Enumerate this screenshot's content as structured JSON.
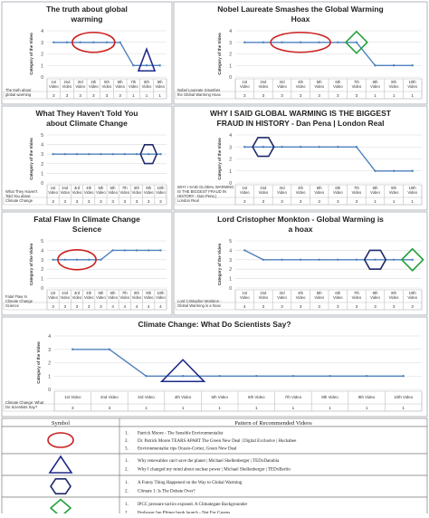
{
  "chart_data": [
    {
      "type": "line",
      "title": "The truth about global warming",
      "ylabel": "Category of the Video",
      "categories": [
        "1st Video",
        "2nd Video",
        "3rd Video",
        "4th Video",
        "5th Video",
        "6th Video",
        "7th Video",
        "8th Video",
        "9th Video"
      ],
      "ylim": [
        0,
        4
      ],
      "yticks": [
        0,
        1,
        2,
        3,
        4
      ],
      "series": [
        {
          "name": "The truth about global warming",
          "values": [
            3,
            3,
            3,
            3,
            3,
            3,
            1,
            1,
            1
          ]
        }
      ],
      "table_values": [
        "3",
        "3",
        "3",
        "3",
        "3",
        "3",
        "1",
        "1",
        "1"
      ],
      "markers": [
        {
          "shape": "ellipse",
          "from": "3rd Video",
          "to": "5th Video",
          "value": 3
        },
        {
          "shape": "triangle",
          "at": "8th Video",
          "value": 1
        }
      ]
    },
    {
      "type": "line",
      "title": "Nobel Laureate Smashes the Global Warming Hoax",
      "ylabel": "Category of the Video",
      "categories": [
        "1st Video",
        "2nd Video",
        "3rd Video",
        "4th Video",
        "5th Video",
        "6th Video",
        "7th Video",
        "8th Video",
        "9th Video",
        "10th Video"
      ],
      "ylim": [
        0,
        4
      ],
      "yticks": [
        0,
        1,
        2,
        3,
        4
      ],
      "series": [
        {
          "name": "Nobel Laureate Smashes the Global Warming Hoax",
          "values": [
            3,
            3,
            3,
            3,
            3,
            3,
            3,
            1,
            1,
            1
          ]
        }
      ],
      "table_values": [
        "3",
        "3",
        "3",
        "3",
        "3",
        "3",
        "3",
        "1",
        "1",
        "1"
      ],
      "markers": [
        {
          "shape": "ellipse",
          "from": "3rd Video",
          "to": "5th Video",
          "value": 3
        },
        {
          "shape": "diamond",
          "at": "7th Video",
          "value": 3
        }
      ]
    },
    {
      "type": "line",
      "title": "What They Haven't Told You about Climate Change",
      "ylabel": "Category of the Video",
      "categories": [
        "1st Video",
        "2nd Video",
        "3rd Video",
        "4th Video",
        "5th Video",
        "6th Video",
        "7th Video",
        "8th Video",
        "9th Video",
        "10th Video"
      ],
      "ylim": [
        0,
        5
      ],
      "yticks": [
        0,
        1,
        2,
        3,
        4,
        5
      ],
      "series": [
        {
          "name": "What They Haven't Told You about Climate Change",
          "values": [
            3,
            3,
            3,
            3,
            3,
            3,
            3,
            3,
            3,
            3
          ]
        }
      ],
      "table_values": [
        "3",
        "3",
        "3",
        "3",
        "3",
        "3",
        "3",
        "3",
        "3",
        "3"
      ],
      "markers": [
        {
          "shape": "hexagon",
          "at": "9th Video",
          "value": 3
        }
      ]
    },
    {
      "type": "line",
      "title": "WHY I SAID GLOBAL WARMING IS THE BIGGEST FRAUD IN HISTORY - Dan Pena | London Real",
      "ylabel": "Category of the Video",
      "categories": [
        "1st Video",
        "2nd Video",
        "3rd Video",
        "4th Video",
        "5th Video",
        "6th Video",
        "7th Video",
        "8th Video",
        "9th Video",
        "10th Video"
      ],
      "ylim": [
        0,
        4
      ],
      "yticks": [
        0,
        1,
        2,
        3,
        4
      ],
      "series": [
        {
          "name": "WHY I SAID GLOBAL WARMING IS THE BIGGEST FRAUD IN HISTORY - Dan Pena | London Real",
          "values": [
            3,
            3,
            3,
            3,
            3,
            3,
            3,
            1,
            1,
            1
          ]
        }
      ],
      "table_values": [
        "3",
        "3",
        "3",
        "3",
        "3",
        "3",
        "3",
        "1",
        "1",
        "1"
      ],
      "markers": [
        {
          "shape": "hexagon",
          "at": "2nd Video",
          "value": 3
        }
      ]
    },
    {
      "type": "line",
      "title": "Fatal Flaw In Climate Change Science",
      "ylabel": "Category of the Video",
      "categories": [
        "1st Video",
        "2nd Video",
        "3rd Video",
        "4th Video",
        "5th Video",
        "6th Video",
        "7th Video",
        "8th Video",
        "9th Video",
        "10th Video"
      ],
      "ylim": [
        0,
        5
      ],
      "yticks": [
        0,
        1,
        2,
        3,
        4,
        5
      ],
      "series": [
        {
          "name": "Fatal Flaw In Climate Change Science",
          "values": [
            3,
            3,
            3,
            3,
            3,
            4,
            4,
            4,
            4,
            4
          ]
        }
      ],
      "table_values": [
        "3",
        "3",
        "3",
        "3",
        "3",
        "4",
        "4",
        "4",
        "4",
        "4"
      ],
      "markers": [
        {
          "shape": "ellipse",
          "from": "2nd Video",
          "to": "4th Video",
          "value": 3
        }
      ]
    },
    {
      "type": "line",
      "title": "Lord Cristopher Monkton - Global Warming is a hoax",
      "ylabel": "Category of the Video",
      "categories": [
        "1st Video",
        "2nd Video",
        "3rd Video",
        "4th Video",
        "5th Video",
        "6th Video",
        "7th Video",
        "8th Video",
        "9th Video",
        "10th Video"
      ],
      "ylim": [
        0,
        5
      ],
      "yticks": [
        0,
        1,
        2,
        3,
        4,
        5
      ],
      "series": [
        {
          "name": "Lord Cristopher Monkton - Global Warming is a hoax",
          "values": [
            4,
            3,
            3,
            3,
            3,
            3,
            3,
            3,
            3,
            3
          ]
        }
      ],
      "table_values": [
        "4",
        "3",
        "3",
        "3",
        "3",
        "3",
        "3",
        "3",
        "3",
        "3"
      ],
      "markers": [
        {
          "shape": "hexagon",
          "at": "8th Video",
          "value": 3
        },
        {
          "shape": "diamond",
          "at": "10th Video",
          "value": 3
        }
      ]
    },
    {
      "type": "line",
      "title": "Climate Change: What Do Scientists Say?",
      "ylabel": "Category of the Video",
      "categories": [
        "1st Video",
        "2nd Video",
        "3rd Video",
        "4th Video",
        "5th Video",
        "6th Video",
        "7th Video",
        "8th Video",
        "9th Video",
        "10th Video"
      ],
      "ylim": [
        0,
        4
      ],
      "yticks": [
        0,
        1,
        2,
        3,
        4
      ],
      "series": [
        {
          "name": "Climate Change: What Do Scientists Say?",
          "values": [
            3,
            3,
            1,
            1,
            1,
            1,
            1,
            1,
            1,
            1
          ]
        }
      ],
      "table_values": [
        "3",
        "3",
        "1",
        "1",
        "1",
        "1",
        "1",
        "1",
        "1",
        "1"
      ],
      "markers": [
        {
          "shape": "triangle",
          "at": "4th Video",
          "value": 1
        }
      ]
    }
  ],
  "legend_table": {
    "header_symbol": "Symbol",
    "header_pattern": "Pattern of Recommended Videos",
    "rows": [
      {
        "symbol": "ellipse",
        "color": "#cc1f1f",
        "lines": [
          "Patrick Moore - The Sensible Environmentalist",
          "Dr. Patrick Moore TEARS APART The Green New Deal | Digital Exclusive | Huckabee",
          "Environmentalist rips Ocasio-Cortez, Green New Deal"
        ]
      },
      {
        "symbol": "triangle",
        "color": "#1f2a8a",
        "lines": [
          "Why renewables can't save the planet | Michael Shellenberger | TEDxDanubia",
          "Why I changed my mind about nuclear power | Michael Shellenberger | TEDxBerlin"
        ]
      },
      {
        "symbol": "hexagon",
        "color": "#1f2a6a",
        "lines": [
          "A Funny Thing Happened on the Way to Global Warming",
          "Climate 1: Is The Debate Over?"
        ]
      },
      {
        "symbol": "diamond",
        "color": "#22a03a",
        "lines": [
          "IPCC pressure tactics exposed. A Climategate Backgrounder",
          "Professor Ian Plimer book launch - Not For Greens"
        ]
      }
    ]
  },
  "colors": {
    "line": "#4f81bd",
    "panel_border": "#b0b4bb",
    "red": "#cc1f1f",
    "blue": "#1f2a8a",
    "green": "#22a03a"
  }
}
